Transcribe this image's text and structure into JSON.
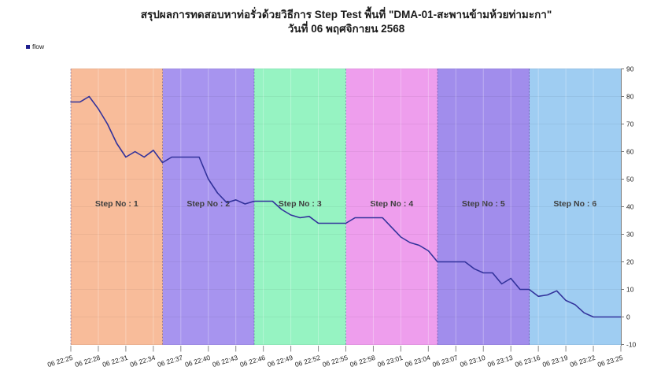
{
  "title": {
    "line1": "สรุปผลการทดสอบหาท่อรั่วด้วยวิธีการ Step Test พื้นที่ \"DMA-01-สะพานข้ามห้วยท่ามะกา\"",
    "line2": "วันที่ 06 พฤศจิกายน 2568"
  },
  "legend": {
    "label": "flow",
    "marker_color": "#1f1f8e"
  },
  "chart_data": {
    "type": "line",
    "title": "สรุปผลการทดสอบหาท่อรั่วด้วยวิธีการ Step Test พื้นที่ \"DMA-01-สะพานข้ามห้วยท่ามะกา\" วันที่ 06 พฤศจิกายน 2568",
    "ylim": [
      -10,
      90
    ],
    "y_ticks": [
      90,
      80,
      70,
      60,
      50,
      40,
      30,
      20,
      10,
      0,
      -10
    ],
    "x_total_minutes": 60,
    "x_tick_interval_minutes": 3,
    "x_tick_labels": [
      "06 22:25",
      "06 22:28",
      "06 22:31",
      "06 22:34",
      "06 22:37",
      "06 22:40",
      "06 22:43",
      "06 22:46",
      "06 22:49",
      "06 22:52",
      "06 22:55",
      "06 22:58",
      "06 23:01",
      "06 23:04",
      "06 23:07",
      "06 23:10",
      "06 23:13",
      "06 23:16",
      "06 23:19",
      "06 23:22",
      "06 23:25"
    ],
    "grid": "faint",
    "legend_position": "top-left",
    "steps": [
      {
        "label": "Step No : 1",
        "color": "#f8bc9a",
        "start_min": 0,
        "end_min": 10
      },
      {
        "label": "Step No : 2",
        "color": "#a794ef",
        "start_min": 10,
        "end_min": 20
      },
      {
        "label": "Step No : 3",
        "color": "#96f3c2",
        "start_min": 20,
        "end_min": 30
      },
      {
        "label": "Step No : 4",
        "color": "#ee9eed",
        "start_min": 30,
        "end_min": 40
      },
      {
        "label": "Step No : 5",
        "color": "#a18dec",
        "start_min": 40,
        "end_min": 50
      },
      {
        "label": "Step No : 6",
        "color": "#9fcdf2",
        "start_min": 50,
        "end_min": 60
      }
    ],
    "series": [
      {
        "name": "flow",
        "color": "#32329b",
        "points": [
          [
            0,
            78
          ],
          [
            1,
            78
          ],
          [
            2,
            80
          ],
          [
            3,
            75.5
          ],
          [
            4,
            70
          ],
          [
            5,
            63
          ],
          [
            6,
            58
          ],
          [
            7,
            60
          ],
          [
            8,
            58
          ],
          [
            9,
            60.5
          ],
          [
            10,
            56
          ],
          [
            11,
            58
          ],
          [
            12,
            58
          ],
          [
            13,
            58
          ],
          [
            14,
            58
          ],
          [
            15,
            50
          ],
          [
            16,
            45
          ],
          [
            17,
            41.5
          ],
          [
            18,
            42.5
          ],
          [
            19,
            41
          ],
          [
            20,
            42
          ],
          [
            21,
            42
          ],
          [
            22,
            42
          ],
          [
            23,
            39
          ],
          [
            24,
            37
          ],
          [
            25,
            36
          ],
          [
            26,
            36.5
          ],
          [
            27,
            34
          ],
          [
            28,
            34
          ],
          [
            29,
            34
          ],
          [
            30,
            34
          ],
          [
            31,
            36
          ],
          [
            32,
            36
          ],
          [
            33,
            36
          ],
          [
            34,
            36
          ],
          [
            35,
            32.5
          ],
          [
            36,
            29
          ],
          [
            37,
            27
          ],
          [
            38,
            26
          ],
          [
            39,
            24
          ],
          [
            40,
            20
          ],
          [
            41,
            20
          ],
          [
            42,
            20
          ],
          [
            43,
            20
          ],
          [
            44,
            17.5
          ],
          [
            45,
            16
          ],
          [
            46,
            16
          ],
          [
            47,
            12
          ],
          [
            48,
            14
          ],
          [
            49,
            10
          ],
          [
            50,
            10
          ],
          [
            51,
            7.5
          ],
          [
            52,
            8
          ],
          [
            53,
            9.5
          ],
          [
            54,
            6
          ],
          [
            55,
            4.5
          ],
          [
            56,
            1.5
          ],
          [
            57,
            0
          ],
          [
            58,
            0
          ],
          [
            59,
            0
          ],
          [
            60,
            0
          ]
        ]
      }
    ]
  }
}
